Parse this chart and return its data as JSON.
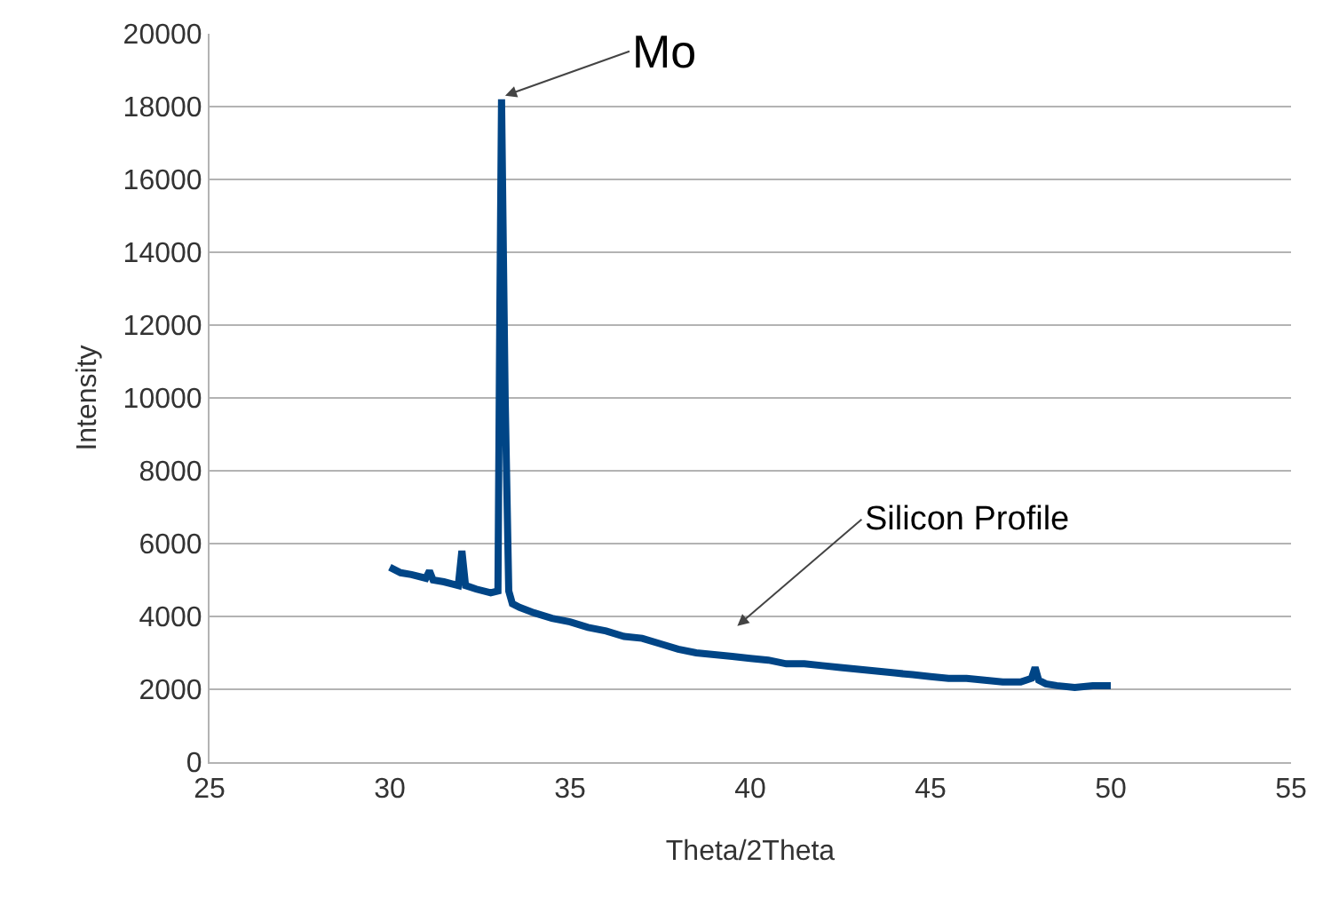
{
  "chart_data": {
    "type": "line",
    "xlabel": "Theta/2Theta",
    "ylabel": "Intensity",
    "series": [
      {
        "color": "#004586",
        "x": [
          30,
          30.3,
          30.6,
          31,
          31.1,
          31.2,
          31.5,
          31.9,
          32,
          32.1,
          32.4,
          32.8,
          33,
          33.05,
          33.1,
          33.15,
          33.2,
          33.3,
          33.4,
          33.6,
          34,
          34.5,
          35,
          35.5,
          36,
          36.5,
          37,
          37.5,
          38,
          38.5,
          39,
          39.5,
          40,
          40.5,
          41,
          41.5,
          42,
          42.5,
          43,
          43.5,
          44,
          44.5,
          45,
          45.5,
          46,
          46.5,
          47,
          47.5,
          47.8,
          47.9,
          48,
          48.2,
          48.5,
          49,
          49.5,
          50
        ],
        "values": [
          5350,
          5200,
          5150,
          5050,
          5250,
          5000,
          4950,
          4850,
          5800,
          4850,
          4750,
          4650,
          4700,
          12000,
          18200,
          14000,
          10000,
          4700,
          4350,
          4250,
          4100,
          3950,
          3850,
          3700,
          3600,
          3450,
          3400,
          3250,
          3100,
          3000,
          2950,
          2900,
          2850,
          2800,
          2700,
          2700,
          2650,
          2600,
          2550,
          2500,
          2450,
          2400,
          2350,
          2300,
          2300,
          2250,
          2200,
          2200,
          2300,
          2600,
          2250,
          2150,
          2100,
          2050,
          2100,
          2100
        ]
      }
    ],
    "xlim": [
      25,
      55
    ],
    "xticks": [
      25,
      30,
      35,
      40,
      45,
      50,
      55
    ],
    "ylim": [
      0,
      20000
    ],
    "yticks": [
      0,
      2000,
      4000,
      6000,
      8000,
      10000,
      12000,
      14000,
      16000,
      18000,
      20000
    ],
    "grid": "y",
    "marker": "none",
    "line_style": "solid",
    "annotations": [
      {
        "text": "Mo",
        "x": 33.2,
        "y": 18300
      },
      "Silicon Profile"
    ]
  }
}
